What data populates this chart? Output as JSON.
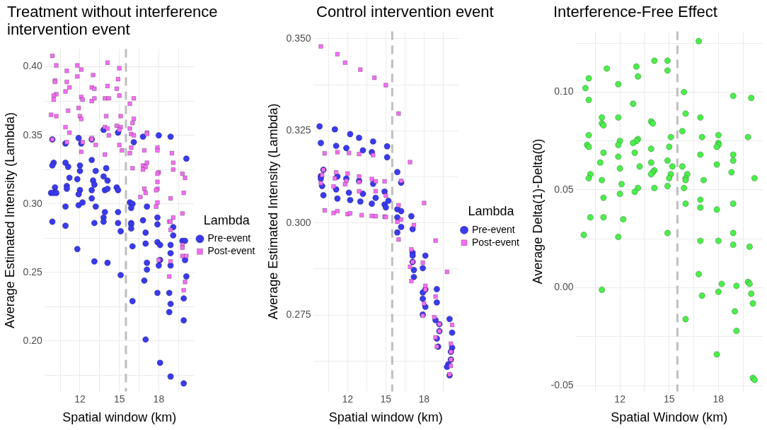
{
  "chart_data": [
    {
      "type": "scatter",
      "title": "Treatment without interference intervention event",
      "xlabel": "Spatial window (km)",
      "ylabel": "Average Estimated Intensity (Lambda)",
      "legend_title": "Lambda",
      "legend": "right",
      "grid": true,
      "xlim": [
        9.3,
        20.7
      ],
      "xticks": [
        {
          "value": 10.5,
          "label": null
        },
        12,
        {
          "value": 13.5,
          "label": null
        },
        15,
        {
          "value": 16.5,
          "label": null
        },
        18,
        {
          "value": 19.5,
          "label": null
        }
      ],
      "ylim": [
        0.163,
        0.413
      ],
      "yticks": [
        {
          "value": 0.175,
          "label": null
        },
        {
          "value": 0.2,
          "label": "0.20"
        },
        {
          "value": 0.225,
          "label": null
        },
        {
          "value": 0.25,
          "label": "0.25"
        },
        {
          "value": 0.275,
          "label": null
        },
        {
          "value": 0.3,
          "label": "0.30"
        },
        {
          "value": 0.325,
          "label": null
        },
        {
          "value": 0.35,
          "label": "0.35"
        },
        {
          "value": 0.375,
          "label": null
        },
        {
          "value": 0.4,
          "label": "0.40"
        }
      ],
      "ref_lines": [
        {
          "axis": "x",
          "value": 15.5,
          "color": "#bebebe",
          "line_style": "dashed"
        }
      ],
      "series": [
        {
          "name": "Pre-event",
          "color": "#3a3aef",
          "marker": "circle",
          "x": [
            9.9,
            11.9,
            10.9,
            12.1,
            12.9,
            13.8,
            14.9,
            16.1,
            16.8,
            18.0,
            18.9,
            20.1,
            10.0,
            9.9,
            10.9,
            11.1,
            12.0,
            12.9,
            14.0,
            12.0,
            13.2,
            13.8,
            11.2,
            11.8,
            13.0,
            13.1,
            14.1,
            10.1,
            11.0,
            11.0,
            9.8,
            10.0,
            10.2,
            12.0,
            11.9,
            12.9,
            12.9,
            13.9,
            14.1,
            14.8,
            14.9,
            10.9,
            11.9,
            12.2,
            13.2,
            15.8,
            16.0,
            17.1,
            13.9,
            14.9,
            15.9,
            9.9,
            10.9,
            13.1,
            13.8,
            13.8,
            14.9,
            15.9,
            15.9,
            15.9,
            15.1,
            16.8,
            17.9,
            17.9,
            19.1,
            19.1,
            17.0,
            17.0,
            16.0,
            17.9,
            18.1,
            18.9,
            19.8,
            20.0,
            18.9,
            11.8,
            13.1,
            14.1,
            17.1,
            17.1,
            18.0,
            18.9,
            20.0,
            18.1,
            15.1,
            16.9,
            20.1,
            17.9,
            18.8,
            18.9,
            18.8,
            19.9,
            19.9,
            16.0,
            17.0,
            18.1,
            18.9,
            19.9
          ],
          "values": [
            0.347,
            0.348,
            0.344,
            0.344,
            0.347,
            0.354,
            0.352,
            0.345,
            0.349,
            0.35,
            0.349,
            0.333,
            0.33,
            0.328,
            0.33,
            0.327,
            0.328,
            0.332,
            0.326,
            0.324,
            0.324,
            0.32,
            0.319,
            0.318,
            0.317,
            0.314,
            0.317,
            0.312,
            0.313,
            0.311,
            0.308,
            0.308,
            0.308,
            0.31,
            0.307,
            0.31,
            0.304,
            0.31,
            0.311,
            0.312,
            0.31,
            0.298,
            0.299,
            0.301,
            0.298,
            0.301,
            0.3,
            0.298,
            0.294,
            0.294,
            0.297,
            0.287,
            0.284,
            0.286,
            0.29,
            0.287,
            0.286,
            0.286,
            0.285,
            0.282,
            0.28,
            0.288,
            0.29,
            0.285,
            0.283,
            0.277,
            0.279,
            0.271,
            0.269,
            0.272,
            0.27,
            0.27,
            0.273,
            0.273,
            0.264,
            0.267,
            0.258,
            0.257,
            0.257,
            0.252,
            0.255,
            0.255,
            0.259,
            0.259,
            0.248,
            0.244,
            0.247,
            0.235,
            0.235,
            0.227,
            0.221,
            0.231,
            0.215,
            0.229,
            0.201,
            0.184,
            0.174,
            0.169
          ]
        },
        {
          "name": "Post-event",
          "color": "#f46ef4",
          "marker": "square",
          "x": [
            9.9,
            10.2,
            11.0,
            11.8,
            12.1,
            13.0,
            14.1,
            15.0,
            10.1,
            10.1,
            11.0,
            11.8,
            14.9,
            11.2,
            10.9,
            12.9,
            13.1,
            14.1,
            14.8,
            10.2,
            10.0,
            10.0,
            12.1,
            12.2,
            12.9,
            13.1,
            13.9,
            14.2,
            15.0,
            16.1,
            15.8,
            11.9,
            11.1,
            9.8,
            10.2,
            12.0,
            12.1,
            14.0,
            15.1,
            16.1,
            16.0,
            10.9,
            11.2,
            13.9,
            14.1,
            14.8,
            15.1,
            15.0,
            15.8,
            15.9,
            14.2,
            16.1,
            17.1,
            17.1,
            9.9,
            11.0,
            12.2,
            12.9,
            12.9,
            13.2,
            15.0,
            15.2,
            15.9,
            15.8,
            16.9,
            17.9,
            17.9,
            19.0,
            12.1,
            13.9,
            16.0,
            17.1,
            16.8,
            17.0,
            16.8,
            19.1,
            19.1,
            18.0,
            17.9,
            19.8,
            20.0,
            17.9,
            16.9,
            17.0,
            17.9,
            17.8,
            19.9,
            16.6,
            18.9,
            17.9,
            17.8,
            19.8,
            19.1,
            18.8,
            18.9,
            18.9,
            19.8,
            19.8,
            19.8,
            20.1,
            18.0,
            18.9,
            18.8,
            20.0,
            19.9
          ],
          "values": [
            0.408,
            0.401,
            0.397,
            0.401,
            0.398,
            0.394,
            0.403,
            0.399,
            0.39,
            0.389,
            0.389,
            0.393,
            0.391,
            0.385,
            0.382,
            0.385,
            0.384,
            0.386,
            0.384,
            0.38,
            0.379,
            0.376,
            0.378,
            0.376,
            0.375,
            0.377,
            0.377,
            0.377,
            0.379,
            0.377,
            0.373,
            0.37,
            0.368,
            0.365,
            0.364,
            0.364,
            0.362,
            0.364,
            0.364,
            0.362,
            0.359,
            0.356,
            0.352,
            0.356,
            0.355,
            0.357,
            0.356,
            0.354,
            0.355,
            0.351,
            0.35,
            0.35,
            0.352,
            0.351,
            0.347,
            0.345,
            0.345,
            0.348,
            0.347,
            0.343,
            0.343,
            0.339,
            0.341,
            0.337,
            0.339,
            0.341,
            0.339,
            0.337,
            0.338,
            0.336,
            0.326,
            0.33,
            0.328,
            0.327,
            0.325,
            0.33,
            0.325,
            0.323,
            0.322,
            0.322,
            0.319,
            0.316,
            0.311,
            0.308,
            0.311,
            0.31,
            0.308,
            0.305,
            0.304,
            0.301,
            0.298,
            0.293,
            0.29,
            0.287,
            0.287,
            0.281,
            0.27,
            0.268,
            0.262,
            0.262,
            0.259,
            0.258,
            0.247,
            0.243,
            0.237
          ]
        }
      ]
    },
    {
      "type": "scatter",
      "title": "Control intervention event",
      "xlabel": "Spatial window (km)",
      "ylabel": "Average Estimated Intensity (Lambda)",
      "legend_title": "Lambda",
      "legend": "right",
      "grid": true,
      "xlim": [
        9.3,
        20.7
      ],
      "xticks": [
        {
          "value": 10.5,
          "label": null
        },
        12,
        {
          "value": 13.5,
          "label": null
        },
        15,
        {
          "value": 16.5,
          "label": null
        },
        18,
        {
          "value": 19.5,
          "label": null
        }
      ],
      "ylim": [
        0.2542,
        0.352
      ],
      "yticks": [
        {
          "value": 0.2625,
          "label": null
        },
        {
          "value": 0.275,
          "label": "0.275"
        },
        {
          "value": 0.2875,
          "label": null
        },
        {
          "value": 0.3,
          "label": "0.300"
        },
        {
          "value": 0.3125,
          "label": null
        },
        {
          "value": 0.325,
          "label": "0.325"
        },
        {
          "value": 0.3375,
          "label": null
        },
        {
          "value": 0.35,
          "label": "0.350"
        }
      ],
      "ref_lines": [
        {
          "axis": "x",
          "value": 15.5,
          "color": "#bebebe",
          "line_style": "dashed"
        }
      ],
      "series": [
        {
          "name": "Pre-event",
          "color": "#3a3aef",
          "marker": "circle",
          "x": [
            9.8,
            11.0,
            12.2,
            12.9,
            14.0,
            15.1,
            9.9,
            11.1,
            11.9,
            13.2,
            13.9,
            10.1,
            15.9,
            9.9,
            9.9,
            11.2,
            11.9,
            12.9,
            14.0,
            16.2,
            10.0,
            11.1,
            12.1,
            13.2,
            14.2,
            14.9,
            15.2,
            10.1,
            11.2,
            12.2,
            13.0,
            13.9,
            14.9,
            15.0,
            15.9,
            16.2,
            15.9,
            17.0,
            16.2,
            17.1,
            15.9,
            17.1,
            17.1,
            18.1,
            17.1,
            17.2,
            17.9,
            17.2,
            18.1,
            19.0,
            17.9,
            17.9,
            19.0,
            18.1,
            17.9,
            18.9,
            19.2,
            20.0,
            19.2,
            20.2,
            19.0,
            19.1,
            20.2,
            20.1,
            20.1,
            19.9,
            19.8,
            20.0,
            15.1
          ],
          "values": [
            0.3262,
            0.3254,
            0.3241,
            0.3231,
            0.3221,
            0.3208,
            0.3217,
            0.3209,
            0.3203,
            0.3197,
            0.3192,
            0.3144,
            0.3138,
            0.3127,
            0.312,
            0.3126,
            0.312,
            0.3114,
            0.3106,
            0.3109,
            0.31,
            0.3091,
            0.3082,
            0.3079,
            0.3068,
            0.3085,
            0.306,
            0.3075,
            0.3066,
            0.3062,
            0.3058,
            0.3052,
            0.305,
            0.3042,
            0.3037,
            0.3032,
            0.3015,
            0.3018,
            0.2989,
            0.2983,
            0.2974,
            0.2919,
            0.2911,
            0.2911,
            0.2894,
            0.2872,
            0.2877,
            0.2853,
            0.2819,
            0.282,
            0.2811,
            0.2794,
            0.2784,
            0.2772,
            0.2751,
            0.2736,
            0.2725,
            0.2739,
            0.2706,
            0.2702,
            0.2686,
            0.2664,
            0.2661,
            0.265,
            0.2629,
            0.2616,
            0.2609,
            0.2586,
            0.3178
          ]
        },
        {
          "name": "Post-event",
          "color": "#f46ef4",
          "marker": "square",
          "x": [
            9.9,
            11.2,
            11.8,
            13.0,
            14.1,
            15.0,
            16.0,
            10.2,
            11.2,
            12.1,
            12.9,
            14.0,
            16.9,
            10.1,
            10.0,
            11.1,
            11.0,
            12.0,
            11.9,
            12.9,
            12.9,
            13.9,
            14.2,
            14.9,
            16.2,
            9.9,
            10.9,
            11.8,
            12.9,
            14.2,
            15.0,
            18.0,
            10.2,
            10.9,
            11.2,
            12.0,
            12.2,
            13.1,
            13.9,
            14.2,
            14.9,
            15.0,
            16.0,
            16.2,
            15.9,
            17.2,
            16.0,
            18.9,
            17.0,
            17.1,
            17.9,
            16.9,
            19.8,
            17.0,
            18.1,
            18.1,
            18.9,
            18.0,
            17.9,
            18.8,
            19.2,
            20.2,
            19.2,
            18.9,
            19.0,
            20.1,
            20.1,
            20.1,
            20.1,
            20.0
          ],
          "values": [
            0.3479,
            0.3458,
            0.3435,
            0.3416,
            0.3394,
            0.3374,
            0.3297,
            0.3189,
            0.3192,
            0.319,
            0.3187,
            0.3184,
            0.3165,
            0.3144,
            0.313,
            0.3137,
            0.3121,
            0.3134,
            0.3114,
            0.3126,
            0.3111,
            0.3119,
            0.3113,
            0.3113,
            0.3114,
            0.3108,
            0.3099,
            0.3105,
            0.3086,
            0.3086,
            0.3074,
            0.3054,
            0.3034,
            0.3027,
            0.3032,
            0.3024,
            0.3026,
            0.3021,
            0.3019,
            0.3018,
            0.3017,
            0.3016,
            0.3048,
            0.3009,
            0.3003,
            0.2994,
            0.2955,
            0.2952,
            0.2928,
            0.2894,
            0.2892,
            0.2881,
            0.2867,
            0.2842,
            0.2829,
            0.2819,
            0.28,
            0.2781,
            0.2748,
            0.2744,
            0.2725,
            0.2723,
            0.2706,
            0.2689,
            0.2664,
            0.2672,
            0.265,
            0.2629,
            0.2612,
            0.2589
          ]
        }
      ]
    },
    {
      "type": "scatter",
      "title": "Interference-Free Effect",
      "xlabel": "Spatial Window (km)",
      "ylabel": "Average Delta(1)-Delta(0)",
      "grid": true,
      "xlim": [
        9.3,
        20.7
      ],
      "xticks": [
        {
          "value": 10.5,
          "label": null
        },
        12,
        {
          "value": 13.5,
          "label": null
        },
        15,
        {
          "value": 16.5,
          "label": null
        },
        18,
        {
          "value": 19.5,
          "label": null
        }
      ],
      "ylim": [
        -0.053,
        0.131
      ],
      "yticks": [
        {
          "value": -0.05,
          "label": "-0.05"
        },
        {
          "value": -0.025,
          "label": null
        },
        {
          "value": 0,
          "label": "0.00"
        },
        {
          "value": 0.025,
          "label": null
        },
        {
          "value": 0.05,
          "label": "0.05"
        },
        {
          "value": 0.075,
          "label": null
        },
        {
          "value": 0.1,
          "label": "0.10"
        },
        {
          "value": 0.125,
          "label": null
        }
      ],
      "ref_lines": [
        {
          "axis": "x",
          "value": 15.5,
          "color": "#bebebe",
          "line_style": "dashed"
        }
      ],
      "series": [
        {
          "color": "#4cee4c",
          "marker": "circle",
          "x": [
            16.8,
            14.1,
            14.9,
            14.9,
            11.2,
            13.0,
            13.1,
            10.1,
            9.9,
            11.9,
            10.1,
            15.9,
            18.9,
            20.0,
            12.8,
            16.0,
            10.9,
            11.9,
            16.9,
            13.9,
            14.0,
            10.9,
            11.0,
            15.8,
            10.1,
            15.1,
            17.0,
            18.0,
            19.8,
            12.0,
            13.1,
            13.0,
            12.8,
            10.0,
            10.1,
            11.9,
            18.0,
            18.0,
            17.9,
            13.9,
            15.0,
            11.0,
            12.9,
            16.9,
            18.9,
            11.9,
            14.9,
            18.9,
            10.8,
            13.9,
            15.2,
            15.8,
            13.2,
            17.9,
            12.0,
            10.2,
            10.1,
            14.1,
            14.0,
            13.9,
            15.1,
            15.0,
            16.1,
            16.0,
            16.0,
            18.8,
            20.2,
            10.9,
            17.1,
            12.1,
            13.1,
            14.1,
            14.9,
            15.9,
            12.9,
            12.0,
            11.0,
            16.0,
            16.9,
            18.9,
            16.9,
            17.9,
            10.2,
            11.0,
            12.2,
            9.8,
            11.9,
            14.9,
            18.9,
            16.9,
            18.0,
            18.9,
            19.9,
            16.8,
            19.8,
            19.9,
            18.2,
            19.1,
            10.9,
            18.0,
            17.0,
            20.0,
            20.1,
            19.0,
            16.0,
            19.1,
            17.9,
            20.1,
            20.2
          ],
          "values": [
            0.126,
            0.116,
            0.116,
            0.111,
            0.112,
            0.113,
            0.108,
            0.107,
            0.102,
            0.104,
            0.096,
            0.1,
            0.098,
            0.097,
            0.094,
            0.089,
            0.087,
            0.087,
            0.087,
            0.085,
            0.084,
            0.084,
            0.083,
            0.08,
            0.078,
            0.077,
            0.077,
            0.078,
            0.077,
            0.075,
            0.076,
            0.075,
            0.074,
            0.073,
            0.072,
            0.073,
            0.074,
            0.073,
            0.072,
            0.071,
            0.072,
            0.069,
            0.069,
            0.068,
            0.068,
            0.067,
            0.065,
            0.065,
            0.064,
            0.064,
            0.062,
            0.062,
            0.062,
            0.063,
            0.061,
            0.058,
            0.056,
            0.06,
            0.059,
            0.058,
            0.058,
            0.056,
            0.058,
            0.056,
            0.055,
            0.059,
            0.056,
            0.055,
            0.055,
            0.053,
            0.051,
            0.051,
            0.052,
            0.051,
            0.049,
            0.048,
            0.046,
            0.043,
            0.045,
            0.043,
            0.041,
            0.04,
            0.036,
            0.036,
            0.035,
            0.027,
            0.026,
            0.028,
            0.028,
            0.024,
            0.024,
            0.022,
            0.021,
            0.007,
            0.003,
            0.002,
            0.002,
            0.001,
            -0.001,
            -0.002,
            -0.004,
            -0.003,
            -0.008,
            -0.012,
            -0.016,
            -0.022,
            -0.034,
            -0.046,
            -0.047
          ]
        }
      ]
    }
  ]
}
